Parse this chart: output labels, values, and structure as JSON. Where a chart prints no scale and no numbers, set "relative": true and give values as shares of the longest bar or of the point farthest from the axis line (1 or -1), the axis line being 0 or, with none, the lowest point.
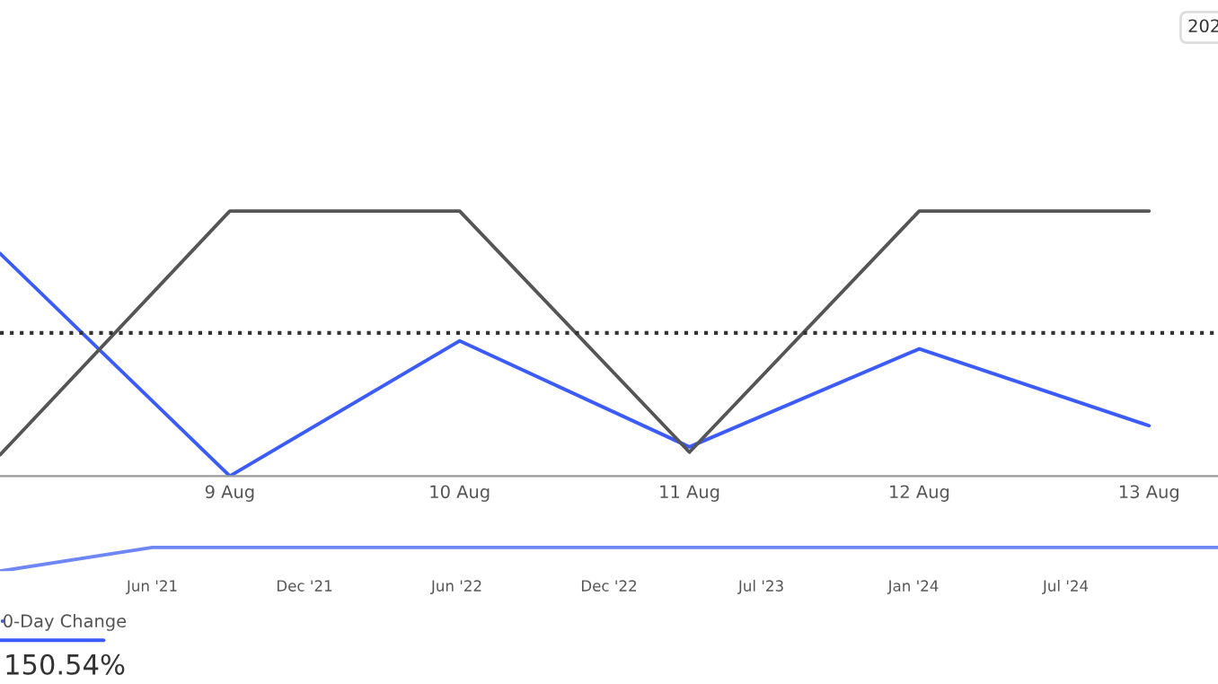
{
  "chart_data": [
    {
      "type": "line",
      "relative": true,
      "categories": [
        null,
        "9 Aug",
        "10 Aug",
        "11 Aug",
        "12 Aug",
        "13 Aug"
      ],
      "series": [
        {
          "name": "0-Day Change",
          "color": "#3b5bfa",
          "values": [
            0.84,
            0,
            0.51,
            0.11,
            0.48,
            0.19
          ]
        },
        {
          "color": "#555555",
          "values": [
            0.08,
            1,
            1,
            0.09,
            1,
            1
          ]
        }
      ],
      "ref_lines": [
        {
          "axis": "y",
          "value": 0.54,
          "color": "#333333",
          "line_style": "dotted"
        }
      ],
      "legend": "bottom left",
      "annotations": [
        "202",
        "150.54%"
      ],
      "marker": "none",
      "line_style": "solid",
      "grid": false
    },
    {
      "type": "line",
      "relative": true,
      "categories": [
        null,
        "Jun '21",
        "Dec '21",
        "Jun '22",
        "Dec '22",
        "Jul '23",
        "Jan '24",
        "Jul '24",
        null
      ],
      "series": [
        {
          "color": "#6f86f5",
          "values": [
            0,
            1,
            1,
            1,
            1,
            1,
            1,
            1,
            1
          ]
        }
      ],
      "marker": "none",
      "line_style": "solid",
      "grid": false
    }
  ]
}
